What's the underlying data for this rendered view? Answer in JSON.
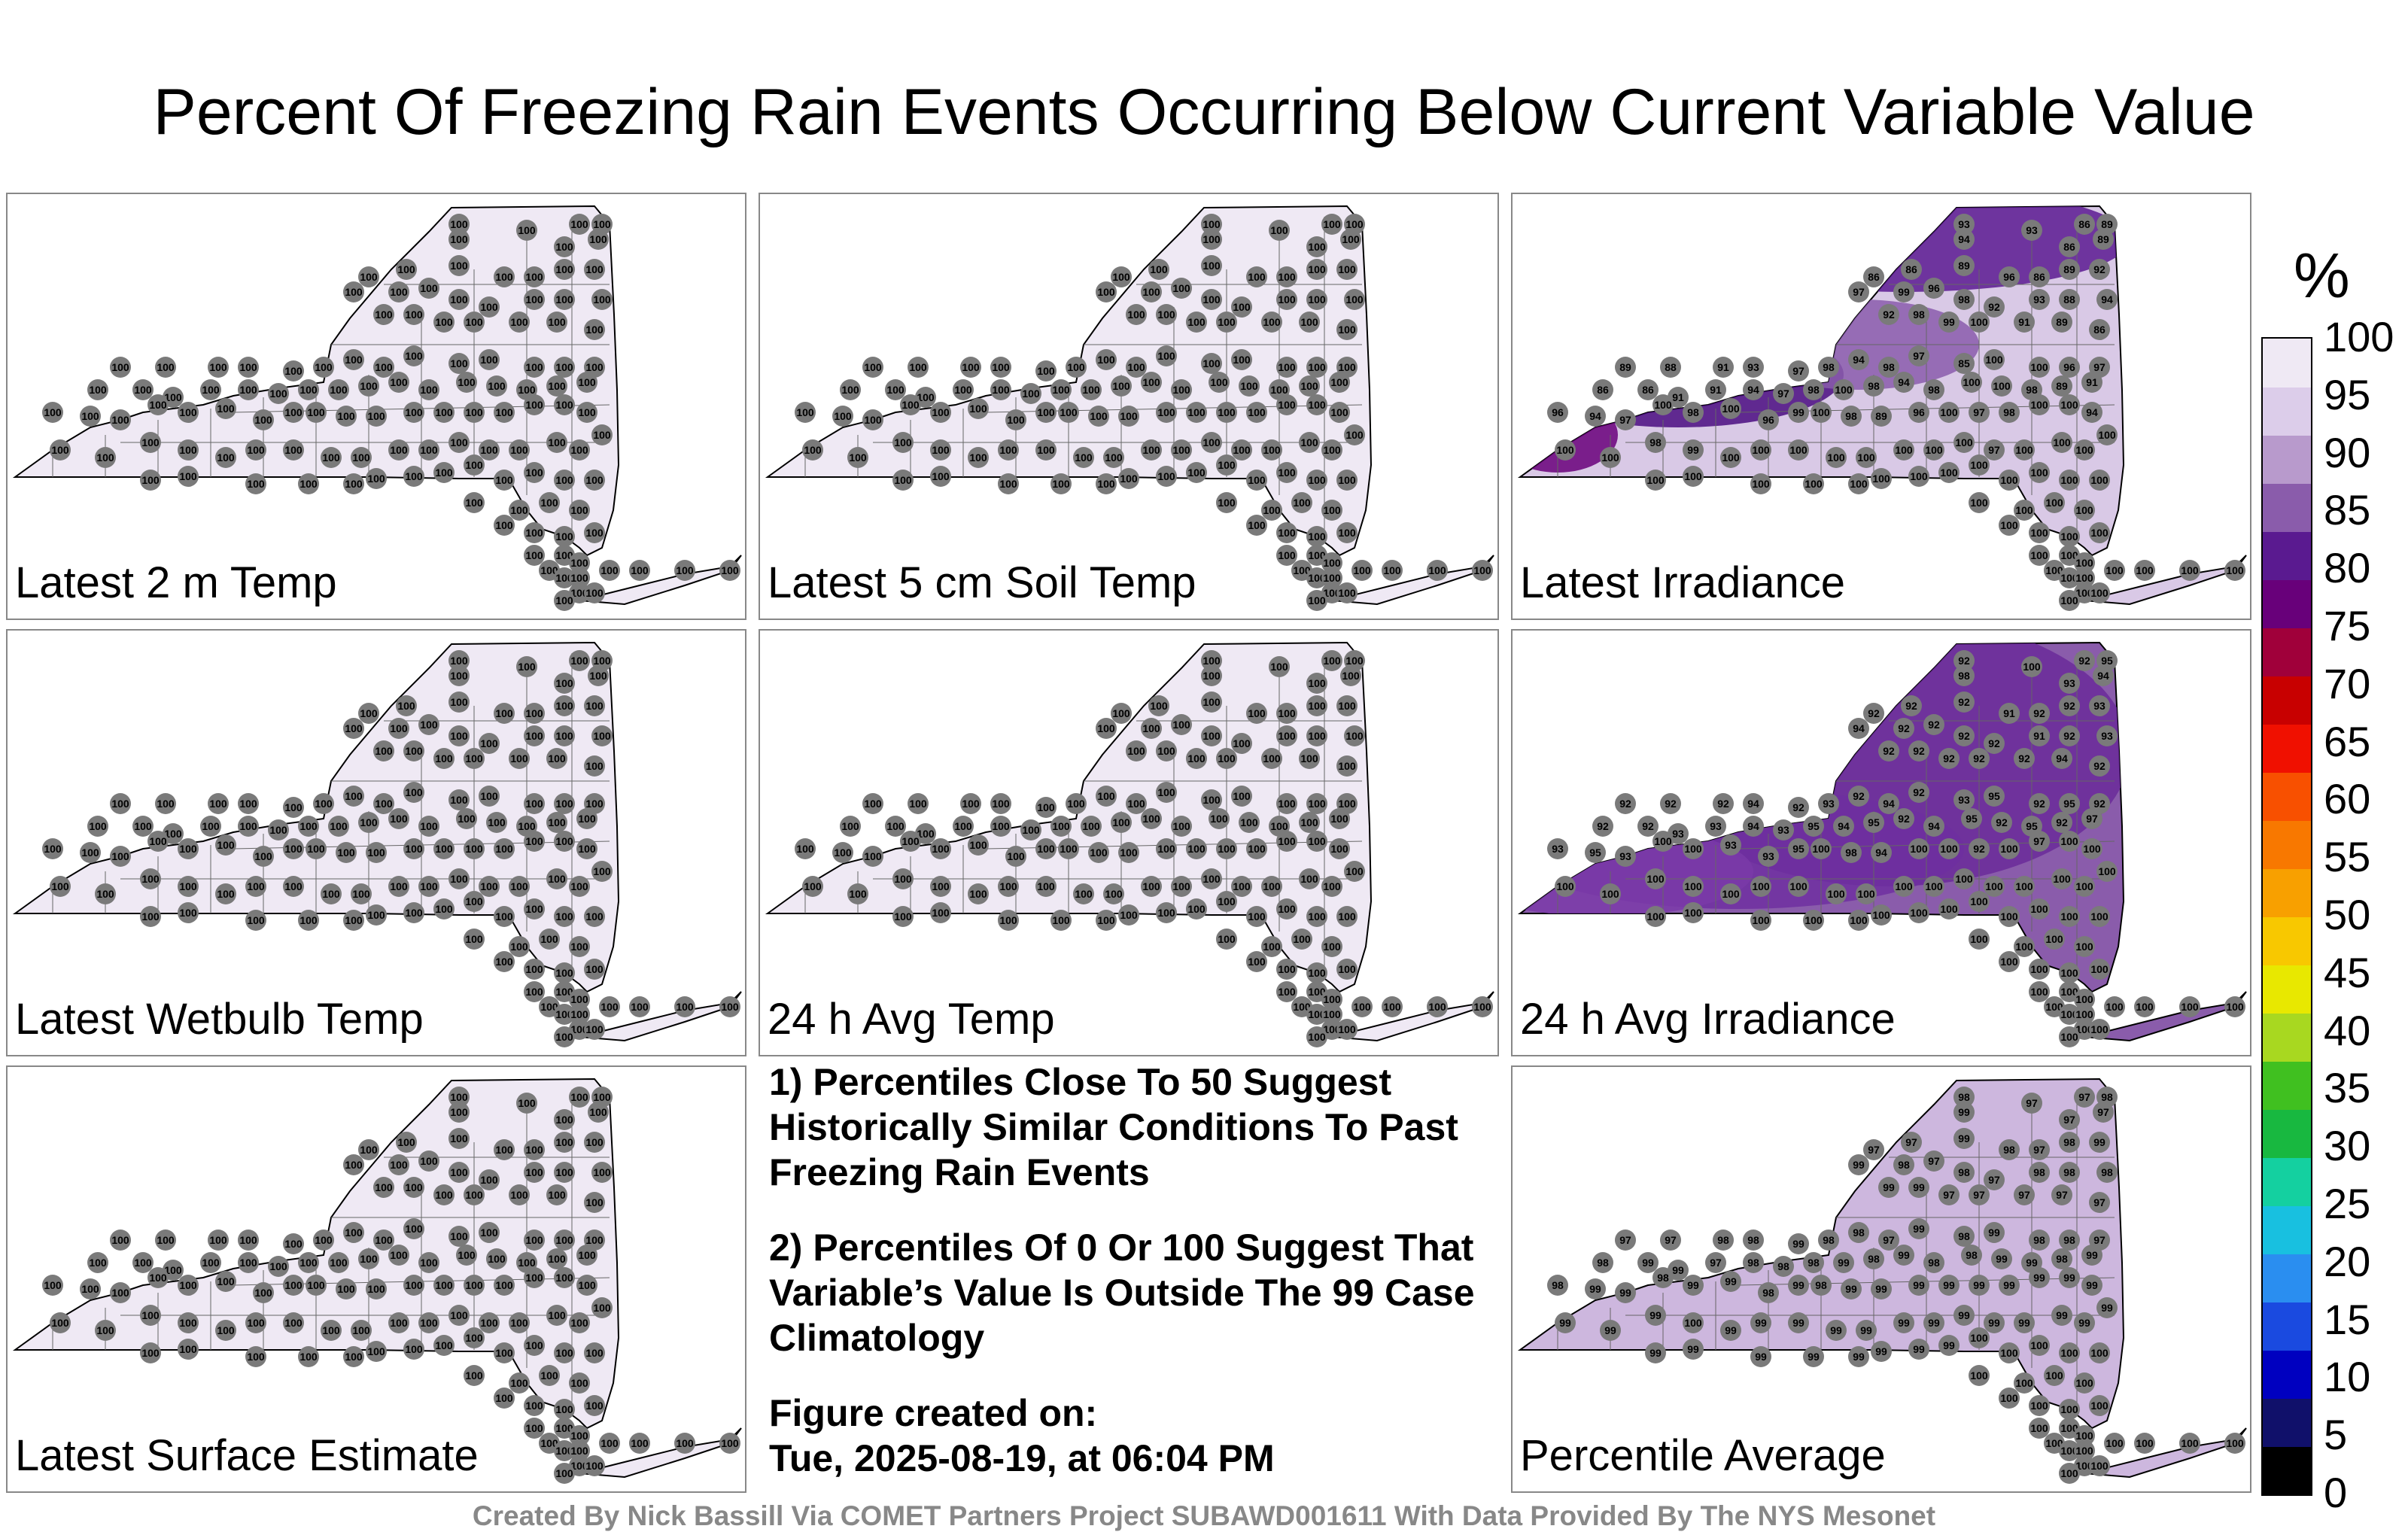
{
  "title": "Percent Of Freezing Rain Events Occurring Below Current Variable Value",
  "panels": [
    {
      "label": "Latest 2 m Temp",
      "fill": "#efe9f4",
      "values": [
        100,
        100,
        100,
        100,
        100,
        100,
        100,
        100,
        100,
        100,
        100,
        100,
        100,
        100,
        100,
        100,
        100,
        100,
        100,
        100,
        100,
        100,
        100,
        100,
        100,
        100,
        100,
        100,
        100,
        100,
        100,
        100,
        100,
        100,
        100,
        100,
        100,
        100,
        100,
        100,
        100,
        100,
        100,
        100,
        100,
        100,
        100,
        100,
        100,
        100,
        100,
        100,
        100,
        100,
        100,
        100,
        100,
        100,
        100,
        100,
        100,
        100,
        100,
        100,
        100,
        100,
        100,
        100,
        100,
        100,
        100,
        100,
        100,
        100,
        100,
        100,
        100,
        100,
        100,
        100,
        100,
        100,
        100,
        100,
        100,
        100,
        100,
        100,
        100,
        100,
        100,
        100,
        100,
        100,
        100,
        100,
        100,
        100,
        100,
        100,
        100,
        100,
        100,
        100,
        100,
        100,
        100,
        100,
        100,
        100,
        100,
        100,
        100,
        100,
        100,
        100,
        100,
        100,
        100,
        100,
        100,
        100,
        100,
        100,
        100,
        100,
        100,
        100,
        100,
        100,
        100,
        100,
        100,
        100
      ]
    },
    {
      "label": "Latest 5 cm Soil Temp",
      "fill": "#efe9f4",
      "values": [
        100,
        100,
        100,
        100,
        100,
        100,
        100,
        100,
        100,
        100,
        100,
        100,
        100,
        100,
        100,
        100,
        100,
        100,
        100,
        100,
        100,
        100,
        100,
        100,
        100,
        100,
        100,
        100,
        100,
        100,
        100,
        100,
        100,
        100,
        100,
        100,
        100,
        100,
        100,
        100,
        100,
        100,
        100,
        100,
        100,
        100,
        100,
        100,
        100,
        100,
        100,
        100,
        100,
        100,
        100,
        100,
        100,
        100,
        100,
        100,
        100,
        100,
        100,
        100,
        100,
        100,
        100,
        100,
        100,
        100,
        100,
        100,
        100,
        100,
        100,
        100,
        100,
        100,
        100,
        100,
        100,
        100,
        100,
        100,
        100,
        100,
        100,
        100,
        100,
        100,
        100,
        100,
        100,
        100,
        100,
        100,
        100,
        100,
        100,
        100,
        100,
        100,
        100,
        100,
        100,
        100,
        100,
        100,
        100,
        100,
        100,
        100,
        100,
        100,
        100,
        100,
        100,
        100,
        100,
        100,
        100,
        100,
        100,
        100,
        100,
        100,
        100,
        100,
        100,
        100,
        100,
        100,
        100,
        100
      ]
    },
    {
      "label": "Latest Irradiance",
      "fill": "#d9c9e6",
      "values": [
        93,
        86,
        89,
        94,
        93,
        89,
        86,
        86,
        86,
        89,
        96,
        86,
        89,
        92,
        97,
        99,
        96,
        98,
        92,
        93,
        88,
        94,
        92,
        98,
        99,
        100,
        91,
        89,
        86,
        89,
        88,
        91,
        93,
        97,
        98,
        94,
        98,
        97,
        85,
        100,
        100,
        96,
        97,
        86,
        86,
        91,
        91,
        94,
        97,
        98,
        100,
        98,
        94,
        98,
        100,
        100,
        98,
        89,
        91,
        96,
        94,
        97,
        100,
        98,
        100,
        96,
        99,
        100,
        98,
        89,
        96,
        100,
        97,
        98,
        100,
        100,
        94,
        100,
        100,
        98,
        99,
        100,
        100,
        100,
        100,
        100,
        100,
        100,
        100,
        97,
        100,
        100,
        100,
        100,
        100,
        100,
        100,
        100,
        100,
        100,
        100,
        100,
        100,
        100,
        100,
        100,
        100,
        100,
        100,
        100,
        100,
        100,
        100,
        100,
        100,
        100,
        100,
        100,
        100,
        100,
        100,
        100,
        100,
        100,
        100,
        100,
        100,
        100,
        100,
        100,
        100,
        100,
        100,
        100
      ]
    },
    {
      "label": "Latest Wetbulb Temp",
      "fill": "#efe9f4",
      "values": [
        100,
        100,
        100,
        100,
        100,
        100,
        100,
        100,
        100,
        100,
        100,
        100,
        100,
        100,
        100,
        100,
        100,
        100,
        100,
        100,
        100,
        100,
        100,
        100,
        100,
        100,
        100,
        100,
        100,
        100,
        100,
        100,
        100,
        100,
        100,
        100,
        100,
        100,
        100,
        100,
        100,
        100,
        100,
        100,
        100,
        100,
        100,
        100,
        100,
        100,
        100,
        100,
        100,
        100,
        100,
        100,
        100,
        100,
        100,
        100,
        100,
        100,
        100,
        100,
        100,
        100,
        100,
        100,
        100,
        100,
        100,
        100,
        100,
        100,
        100,
        100,
        100,
        100,
        100,
        100,
        100,
        100,
        100,
        100,
        100,
        100,
        100,
        100,
        100,
        100,
        100,
        100,
        100,
        100,
        100,
        100,
        100,
        100,
        100,
        100,
        100,
        100,
        100,
        100,
        100,
        100,
        100,
        100,
        100,
        100,
        100,
        100,
        100,
        100,
        100,
        100,
        100,
        100,
        100,
        100,
        100,
        100,
        100,
        100,
        100,
        100,
        100,
        100,
        100,
        100,
        100,
        100,
        100,
        100
      ]
    },
    {
      "label": "24 h Avg Temp",
      "fill": "#efe9f4",
      "values": [
        100,
        100,
        100,
        100,
        100,
        100,
        100,
        100,
        100,
        100,
        100,
        100,
        100,
        100,
        100,
        100,
        100,
        100,
        100,
        100,
        100,
        100,
        100,
        100,
        100,
        100,
        100,
        100,
        100,
        100,
        100,
        100,
        100,
        100,
        100,
        100,
        100,
        100,
        100,
        100,
        100,
        100,
        100,
        100,
        100,
        100,
        100,
        100,
        100,
        100,
        100,
        100,
        100,
        100,
        100,
        100,
        100,
        100,
        100,
        100,
        100,
        100,
        100,
        100,
        100,
        100,
        100,
        100,
        100,
        100,
        100,
        100,
        100,
        100,
        100,
        100,
        100,
        100,
        100,
        100,
        100,
        100,
        100,
        100,
        100,
        100,
        100,
        100,
        100,
        100,
        100,
        100,
        100,
        100,
        100,
        100,
        100,
        100,
        100,
        100,
        100,
        100,
        100,
        100,
        100,
        100,
        100,
        100,
        100,
        100,
        100,
        100,
        100,
        100,
        100,
        100,
        100,
        100,
        100,
        100,
        100,
        100,
        100,
        100,
        100,
        100,
        100,
        100,
        100,
        100,
        100,
        100,
        100,
        100
      ]
    },
    {
      "label": "24 h Avg Irradiance",
      "fill": "#8a5cab",
      "values": [
        92,
        92,
        95,
        98,
        100,
        94,
        93,
        92,
        92,
        92,
        91,
        92,
        92,
        93,
        94,
        92,
        92,
        92,
        92,
        91,
        92,
        93,
        92,
        92,
        92,
        92,
        92,
        94,
        92,
        92,
        92,
        92,
        94,
        92,
        93,
        92,
        94,
        92,
        93,
        95,
        92,
        95,
        92,
        92,
        92,
        93,
        93,
        94,
        93,
        95,
        94,
        95,
        92,
        94,
        95,
        92,
        95,
        92,
        97,
        93,
        95,
        93,
        100,
        100,
        93,
        93,
        95,
        100,
        98,
        94,
        100,
        100,
        92,
        100,
        97,
        100,
        100,
        100,
        100,
        100,
        100,
        100,
        100,
        100,
        100,
        100,
        100,
        100,
        100,
        100,
        100,
        100,
        100,
        100,
        100,
        100,
        100,
        100,
        100,
        100,
        100,
        100,
        100,
        100,
        100,
        100,
        100,
        100,
        100,
        100,
        100,
        100,
        100,
        100,
        100,
        100,
        100,
        100,
        100,
        100,
        100,
        100,
        100,
        100,
        100,
        100,
        100,
        100,
        100,
        100,
        100,
        100,
        100,
        100
      ]
    },
    {
      "label": "Latest Surface Estimate",
      "fill": "#efe9f4",
      "values": [
        100,
        100,
        100,
        100,
        100,
        100,
        100,
        100,
        100,
        100,
        100,
        100,
        100,
        100,
        100,
        100,
        100,
        100,
        100,
        100,
        100,
        100,
        100,
        100,
        100,
        100,
        100,
        100,
        100,
        100,
        100,
        100,
        100,
        100,
        100,
        100,
        100,
        100,
        100,
        100,
        100,
        100,
        100,
        100,
        100,
        100,
        100,
        100,
        100,
        100,
        100,
        100,
        100,
        100,
        100,
        100,
        100,
        100,
        100,
        100,
        100,
        100,
        100,
        100,
        100,
        100,
        100,
        100,
        100,
        100,
        100,
        100,
        100,
        100,
        100,
        100,
        100,
        100,
        100,
        100,
        100,
        100,
        100,
        100,
        100,
        100,
        100,
        100,
        100,
        100,
        100,
        100,
        100,
        100,
        100,
        100,
        100,
        100,
        100,
        100,
        100,
        100,
        100,
        100,
        100,
        100,
        100,
        100,
        100,
        100,
        100,
        100,
        100,
        100,
        100,
        100,
        100,
        100,
        100,
        100,
        100,
        100,
        100,
        100,
        100,
        100,
        100,
        100,
        100,
        100,
        100,
        100,
        100,
        100
      ]
    },
    {
      "label": "Percentile Average",
      "fill": "#cdb7de",
      "values": [
        98,
        97,
        98,
        99,
        97,
        97,
        97,
        97,
        97,
        99,
        98,
        97,
        98,
        99,
        99,
        98,
        97,
        98,
        97,
        98,
        98,
        98,
        99,
        99,
        97,
        97,
        97,
        97,
        97,
        97,
        97,
        98,
        98,
        99,
        98,
        98,
        97,
        99,
        98,
        99,
        98,
        98,
        97,
        98,
        99,
        99,
        97,
        98,
        98,
        98,
        99,
        98,
        99,
        98,
        98,
        99,
        99,
        98,
        99,
        98,
        99,
        99,
        98,
        99,
        99,
        98,
        99,
        98,
        99,
        99,
        99,
        99,
        99,
        99,
        99,
        99,
        99,
        99,
        99,
        99,
        100,
        99,
        99,
        99,
        99,
        99,
        99,
        99,
        99,
        99,
        99,
        99,
        99,
        99,
        99,
        99,
        99,
        99,
        99,
        99,
        99,
        99,
        100,
        100,
        100,
        100,
        100,
        100,
        100,
        100,
        100,
        100,
        100,
        100,
        100,
        100,
        100,
        100,
        100,
        100,
        100,
        100,
        100,
        100,
        100,
        100,
        100,
        100,
        100,
        100,
        100,
        100,
        100,
        100
      ]
    }
  ],
  "notes": {
    "note1": "1) Percentiles Close To 50 Suggest Historically Similar Conditions To Past Freezing Rain Events",
    "note2": "2) Percentiles Of 0 Or 100 Suggest That Variable’s Value Is Outside The 99 Case Climatology",
    "created_label": "Figure created on:",
    "created_value": "Tue, 2025-08-19, at 06:04 PM"
  },
  "footer": "Created By Nick Bassill Via COMET Partners Project SUBAWD001611 With Data Provided By The NYS Mesonet",
  "colorbar": {
    "title": "%",
    "ticks": [
      "100",
      "95",
      "90",
      "85",
      "80",
      "75",
      "70",
      "65",
      "60",
      "55",
      "50",
      "45",
      "40",
      "35",
      "30",
      "25",
      "20",
      "15",
      "10",
      "5",
      "0"
    ],
    "colors": [
      "#000000",
      "#10106a",
      "#0000c0",
      "#1a4ae0",
      "#2a8ef0",
      "#18c0e0",
      "#14d0a0",
      "#18b840",
      "#40c020",
      "#a8d820",
      "#e8e800",
      "#f8c800",
      "#f8a000",
      "#f87800",
      "#f85000",
      "#f01000",
      "#c80000",
      "#a0003a",
      "#68007a",
      "#5a1a90",
      "#8a5cab",
      "#b89acc",
      "#dccdea",
      "#efe9f4"
    ]
  }
}
